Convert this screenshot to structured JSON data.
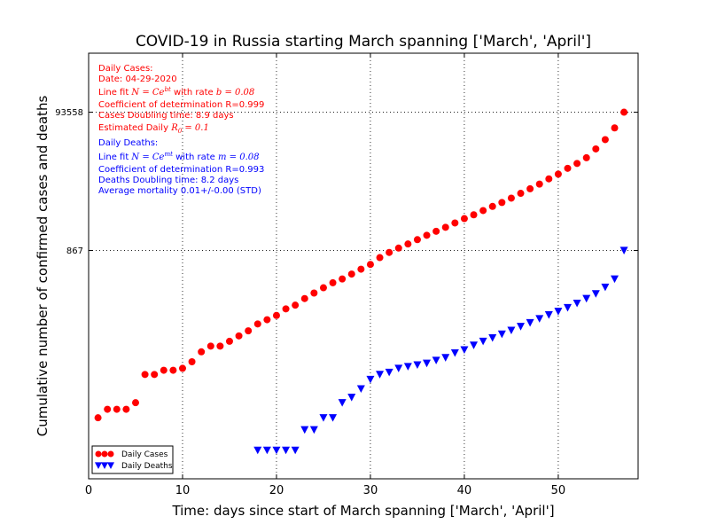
{
  "chart_data": {
    "type": "scatter",
    "title": "COVID-19 in Russia starting March spanning ['March', 'April']",
    "xlabel": "Time: days since start of March spanning ['March', 'April']",
    "ylabel": "Cumulative number of confirmed cases and deaths",
    "xlim": [
      0,
      58.5
    ],
    "ylim": [
      0.38,
      690000
    ],
    "yscale": "log",
    "xticks": [
      0,
      10,
      20,
      30,
      40,
      50
    ],
    "yticks": [
      {
        "value": 867,
        "label": "867"
      },
      {
        "value": 93558,
        "label": "93558"
      }
    ],
    "grid": true,
    "legend_position": "lower-left",
    "series": [
      {
        "name": "Daily Cases",
        "color": "#ff0000",
        "marker": "circle",
        "x": [
          1,
          2,
          3,
          4,
          5,
          6,
          7,
          8,
          9,
          10,
          11,
          12,
          13,
          14,
          15,
          16,
          17,
          18,
          19,
          20,
          21,
          22,
          23,
          24,
          25,
          26,
          27,
          28,
          29,
          30,
          31,
          32,
          33,
          34,
          35,
          36,
          37,
          38,
          39,
          40,
          41,
          42,
          43,
          44,
          45,
          46,
          47,
          48,
          49,
          50,
          51,
          52,
          53,
          54,
          55,
          56,
          57
        ],
        "values": [
          3,
          4,
          4,
          4,
          5,
          13,
          13,
          15,
          15,
          16,
          20,
          28,
          34,
          34,
          40,
          48,
          57,
          72,
          83,
          96,
          120,
          136,
          170,
          205,
          245,
          290,
          330,
          390,
          460,
          540,
          680,
          810,
          940,
          1080,
          1250,
          1450,
          1660,
          1900,
          2200,
          2550,
          2900,
          3350,
          3850,
          4400,
          5100,
          6000,
          7000,
          8200,
          9800,
          11500,
          14000,
          16500,
          20000,
          27000,
          37000,
          55000,
          93558
        ]
      },
      {
        "name": "Daily Deaths",
        "color": "#0000ff",
        "marker": "triangle-down",
        "x": [
          18,
          19,
          20,
          21,
          22,
          23,
          24,
          25,
          26,
          27,
          28,
          29,
          30,
          31,
          32,
          33,
          34,
          35,
          36,
          37,
          38,
          39,
          40,
          41,
          42,
          43,
          44,
          45,
          46,
          47,
          48,
          49,
          50,
          51,
          52,
          53,
          54,
          55,
          56,
          57
        ],
        "values": [
          1,
          1,
          1,
          1,
          1,
          2,
          2,
          3,
          3,
          5,
          6,
          8,
          11,
          13,
          14,
          16,
          17,
          18,
          19,
          21,
          23,
          27,
          30,
          35,
          40,
          45,
          51,
          58,
          66,
          75,
          86,
          98,
          110,
          125,
          145,
          170,
          200,
          250,
          330,
          867
        ]
      }
    ],
    "annotations": {
      "cases": {
        "title": "Daily Cases:",
        "date": "Date: 04-29-2020",
        "fit_prefix": "Line fit ",
        "fit_formula": "N = Ce",
        "fit_exp": "bt",
        "fit_rate_prefix": " with rate ",
        "fit_rate": "b = 0.08",
        "r": "Coefficient of determination R=0.999",
        "doubling": "Cases Doubling time: 8.9 days",
        "r0_prefix": "Estimated Daily ",
        "r0_symbol": "R",
        "r0_sub": "0",
        "r0_value": " = 0.1"
      },
      "deaths": {
        "title": "Daily Deaths:",
        "fit_prefix": "Line fit ",
        "fit_formula": "N = Ce",
        "fit_exp": "mt",
        "fit_rate_prefix": " with rate ",
        "fit_rate": "m = 0.08",
        "r": "Coefficient of determination R=0.993",
        "doubling": "Deaths Doubling time: 8.2 days",
        "mortality": "Average mortality 0.01+/-0.00 (STD)"
      }
    }
  }
}
